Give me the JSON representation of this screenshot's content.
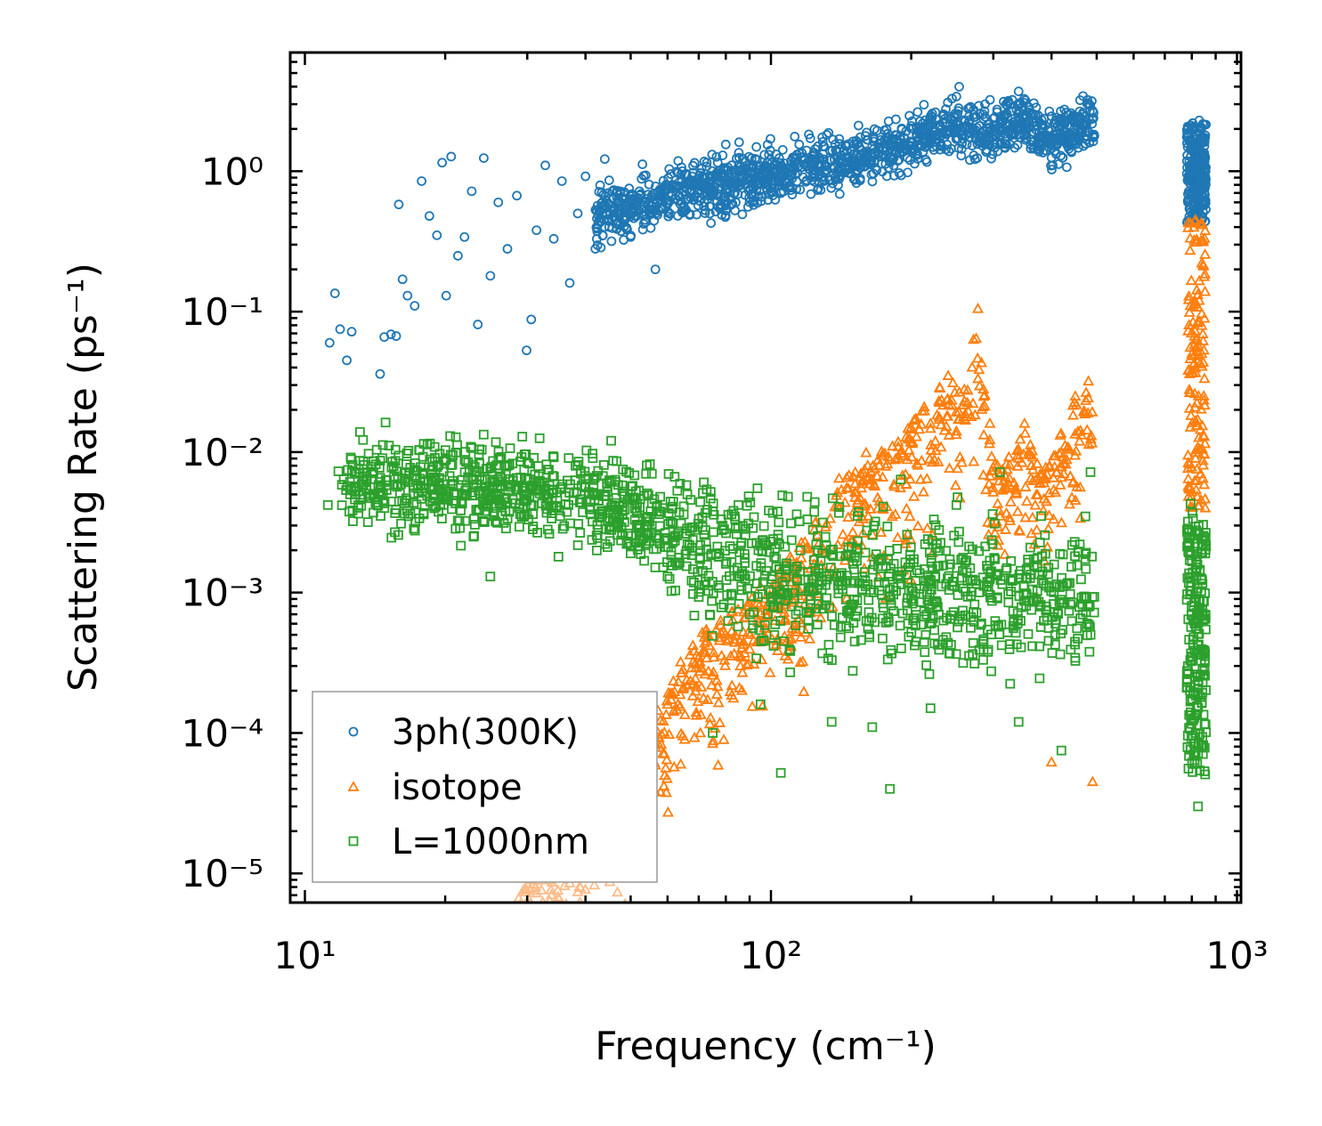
{
  "chart_data": {
    "type": "scatter",
    "xlabel": "Frequency (cm⁻¹)",
    "ylabel": "Scattering Rate (ps⁻¹)",
    "xscale": "log",
    "yscale": "log",
    "xlim": [
      9.3,
      1020
    ],
    "ylim": [
      6.2e-06,
      7.0
    ],
    "x_ticks": [
      {
        "value": 10,
        "label": "10¹"
      },
      {
        "value": 100,
        "label": "10²"
      },
      {
        "value": 1000,
        "label": "10³"
      }
    ],
    "y_ticks": [
      {
        "value": 1e-05,
        "label": "10⁻⁵"
      },
      {
        "value": 0.0001,
        "label": "10⁻⁴"
      },
      {
        "value": 0.001,
        "label": "10⁻³"
      },
      {
        "value": 0.01,
        "label": "10⁻²"
      },
      {
        "value": 0.1,
        "label": "10⁻¹"
      },
      {
        "value": 1,
        "label": "10⁰"
      }
    ],
    "legend_position": "lower-left",
    "series": [
      {
        "name": "3ph(300K)",
        "marker": "circle",
        "color": "#1f77b4",
        "points": [
          [
            11.3,
            0.06
          ],
          [
            11.6,
            0.135
          ],
          [
            11.9,
            0.075
          ],
          [
            12.3,
            0.045
          ],
          [
            12.6,
            0.072
          ],
          [
            14.5,
            0.036
          ],
          [
            14.8,
            0.066
          ],
          [
            15.3,
            0.069
          ],
          [
            15.7,
            0.067
          ],
          [
            15.9,
            0.58
          ],
          [
            16.2,
            0.17
          ],
          [
            16.6,
            0.13
          ],
          [
            17.2,
            0.11
          ],
          [
            17.8,
            0.85
          ],
          [
            18.5,
            0.48
          ],
          [
            19.2,
            0.35
          ],
          [
            19.7,
            1.15
          ],
          [
            20.1,
            0.13
          ],
          [
            20.6,
            1.27
          ],
          [
            21.3,
            0.25
          ],
          [
            22.0,
            0.34
          ],
          [
            22.8,
            0.72
          ],
          [
            23.5,
            0.081
          ],
          [
            24.2,
            1.24
          ],
          [
            25.0,
            0.18
          ],
          [
            26.0,
            0.6
          ],
          [
            27.2,
            0.28
          ],
          [
            28.5,
            0.67
          ],
          [
            29.9,
            0.053
          ],
          [
            30.6,
            0.088
          ],
          [
            31.4,
            0.38
          ],
          [
            32.8,
            1.1
          ],
          [
            34.2,
            0.33
          ],
          [
            35.6,
            0.85
          ],
          [
            37.0,
            0.16
          ],
          [
            38.5,
            0.5
          ],
          [
            40.0,
            0.92
          ],
          [
            42.0,
            0.28
          ],
          [
            44.0,
            1.22
          ],
          [
            47.0,
            0.62
          ],
          [
            50.0,
            0.34
          ],
          [
            53.0,
            1.12
          ],
          [
            56.5,
            0.2
          ],
          [
            60.0,
            0.52
          ],
          [
            65.0,
            0.72
          ],
          [
            72.0,
            0.6
          ],
          [
            80.0,
            1.55
          ],
          [
            90.0,
            0.9
          ],
          [
            100.0,
            0.72
          ],
          [
            115.0,
            1.55
          ],
          [
            130.0,
            0.85
          ],
          [
            150.0,
            1.1
          ],
          [
            170.0,
            1.45
          ],
          [
            200.0,
            2.1
          ],
          [
            230.0,
            1.6
          ],
          [
            250.0,
            3.4
          ],
          [
            280.0,
            2.1
          ],
          [
            310.0,
            1.55
          ],
          [
            340.0,
            3.7
          ],
          [
            370.0,
            2.5
          ],
          [
            400.0,
            1.25
          ],
          [
            430.0,
            2.3
          ],
          [
            470.0,
            2.1
          ],
          [
            490.0,
            2.7
          ],
          [
            785.0,
            0.6
          ],
          [
            800.0,
            1.6
          ],
          [
            815.0,
            0.9
          ],
          [
            830.0,
            2.3
          ],
          [
            845.0,
            1.2
          ],
          [
            855.0,
            1.8
          ]
        ]
      },
      {
        "name": "isotope",
        "marker": "triangle",
        "color": "#ff7f0e",
        "points": [
          [
            28.6,
            1.2e-05
          ],
          [
            31.0,
            1.3e-05
          ],
          [
            34.0,
            1.8e-05
          ],
          [
            37.0,
            2.4e-05
          ],
          [
            40.0,
            2.9e-05
          ],
          [
            44.0,
            4e-05
          ],
          [
            48.0,
            5.5e-05
          ],
          [
            52.0,
            8e-05
          ],
          [
            56.0,
            0.00013
          ],
          [
            60.0,
            0.00016
          ],
          [
            64.0,
            0.00032
          ],
          [
            68.0,
            0.00042
          ],
          [
            72.0,
            0.00048
          ],
          [
            78.0,
            0.00063
          ],
          [
            85.0,
            0.00076
          ],
          [
            95.0,
            0.0011
          ],
          [
            110.0,
            0.0018
          ],
          [
            125.0,
            0.0032
          ],
          [
            140.0,
            0.0065
          ],
          [
            160.0,
            0.0099
          ],
          [
            180.0,
            0.0088
          ],
          [
            200.0,
            0.015
          ],
          [
            220.0,
            0.016
          ],
          [
            240.0,
            0.035
          ],
          [
            260.0,
            0.028
          ],
          [
            278.0,
            0.105
          ],
          [
            295.0,
            0.016
          ],
          [
            320.0,
            0.0082
          ],
          [
            350.0,
            0.016
          ],
          [
            380.0,
            0.0067
          ],
          [
            400.0,
            6.2e-05
          ],
          [
            420.0,
            0.0066
          ],
          [
            450.0,
            0.025
          ],
          [
            480.0,
            0.032
          ],
          [
            490.0,
            4.5e-05
          ],
          [
            785.0,
            0.0095
          ],
          [
            800.0,
            0.05
          ],
          [
            815.0,
            0.45
          ],
          [
            830.0,
            0.12
          ],
          [
            845.0,
            0.0065
          ],
          [
            855.0,
            0.004
          ]
        ]
      },
      {
        "name": "L=1000nm",
        "marker": "square",
        "color": "#2ca02c",
        "points": [
          [
            11.2,
            0.0042
          ],
          [
            11.8,
            0.0073
          ],
          [
            12.5,
            0.005
          ],
          [
            15.0,
            0.0063
          ],
          [
            16.5,
            0.0082
          ],
          [
            18.0,
            0.0036
          ],
          [
            19.0,
            0.0091
          ],
          [
            20.5,
            0.013
          ],
          [
            22.0,
            0.005
          ],
          [
            23.0,
            0.0025
          ],
          [
            25.0,
            0.0013
          ],
          [
            27.0,
            0.0044
          ],
          [
            29.0,
            0.0086
          ],
          [
            31.0,
            0.0091
          ],
          [
            33.0,
            0.0037
          ],
          [
            35.0,
            0.0018
          ],
          [
            38.0,
            0.0063
          ],
          [
            41.0,
            0.0036
          ],
          [
            45.0,
            0.0063
          ],
          [
            50.0,
            0.0019
          ],
          [
            55.0,
            0.0082
          ],
          [
            60.0,
            0.0013
          ],
          [
            65.0,
            0.0036
          ],
          [
            70.0,
            0.00093
          ],
          [
            75.0,
            0.0001
          ],
          [
            80.0,
            0.0016
          ],
          [
            90.0,
            0.0007
          ],
          [
            95.0,
            0.00016
          ],
          [
            100.0,
            0.00086
          ],
          [
            105.0,
            5.2e-05
          ],
          [
            120.0,
            0.0014
          ],
          [
            135.0,
            0.00012
          ],
          [
            150.0,
            0.0016
          ],
          [
            165.0,
            0.00011
          ],
          [
            180.0,
            4e-05
          ],
          [
            200.0,
            0.0009
          ],
          [
            220.0,
            0.00015
          ],
          [
            250.0,
            0.0042
          ],
          [
            280.0,
            0.00039
          ],
          [
            310.0,
            0.0072
          ],
          [
            340.0,
            0.00012
          ],
          [
            380.0,
            0.0035
          ],
          [
            420.0,
            7.5e-05
          ],
          [
            460.0,
            0.0022
          ],
          [
            485.0,
            0.0072
          ],
          [
            780.0,
            0.00021
          ],
          [
            795.0,
            0.0043
          ],
          [
            810.0,
            0.00085
          ],
          [
            825.0,
            3e-05
          ],
          [
            840.0,
            0.0024
          ],
          [
            855.0,
            0.00065
          ]
        ]
      }
    ]
  }
}
